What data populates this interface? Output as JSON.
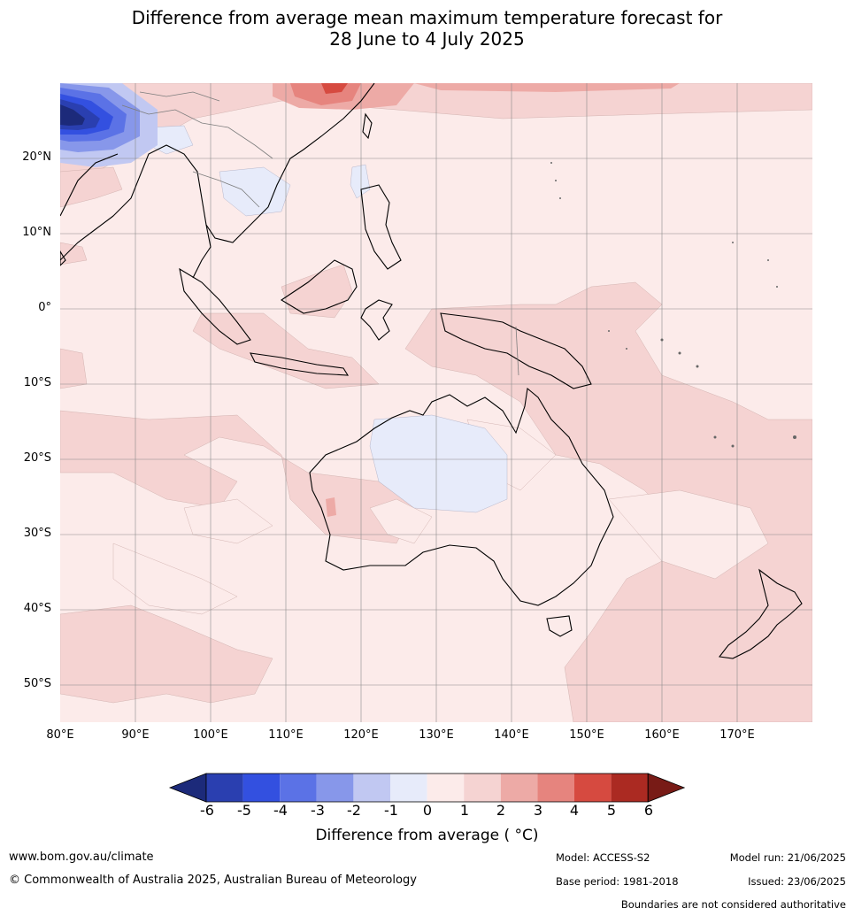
{
  "title": {
    "line1": "Difference from average mean maximum temperature forecast for",
    "line2": "28 June to 4 July 2025"
  },
  "map": {
    "latitude_labels": [
      "20°N",
      "10°N",
      "0°",
      "10°S",
      "20°S",
      "30°S",
      "40°S",
      "50°S"
    ],
    "longitude_labels": [
      "80°E",
      "90°E",
      "100°E",
      "110°E",
      "120°E",
      "130°E",
      "140°E",
      "150°E",
      "160°E",
      "170°E"
    ],
    "extent": {
      "lon_min": 80,
      "lon_max": 180,
      "lat_min": -55,
      "lat_max": 30
    }
  },
  "colorbar": {
    "tick_labels": [
      "-6",
      "-5",
      "-4",
      "-3",
      "-2",
      "-1",
      "0",
      "1",
      "2",
      "3",
      "4",
      "5",
      "6"
    ],
    "colors": [
      "#1c2a7a",
      "#2a3fb0",
      "#3350e0",
      "#5b72e6",
      "#8797ea",
      "#c1c8f2",
      "#e7ebfa",
      "#fcebea",
      "#f5d3d2",
      "#edaaa6",
      "#e6847e",
      "#d64a40",
      "#ab2a22",
      "#781b16"
    ],
    "label": "Difference from average ( °C)"
  },
  "footer": {
    "website": "www.bom.gov.au/climate",
    "copyright": "© Commonwealth of Australia 2025, Australian Bureau of Meteorology",
    "model": "Model: ACCESS-S2",
    "base_period": "Base period: 1981-2018",
    "model_run": "Model run: 21/06/2025",
    "issued": "Issued: 23/06/2025",
    "disclaimer": "Boundaries are not considered authoritative"
  }
}
